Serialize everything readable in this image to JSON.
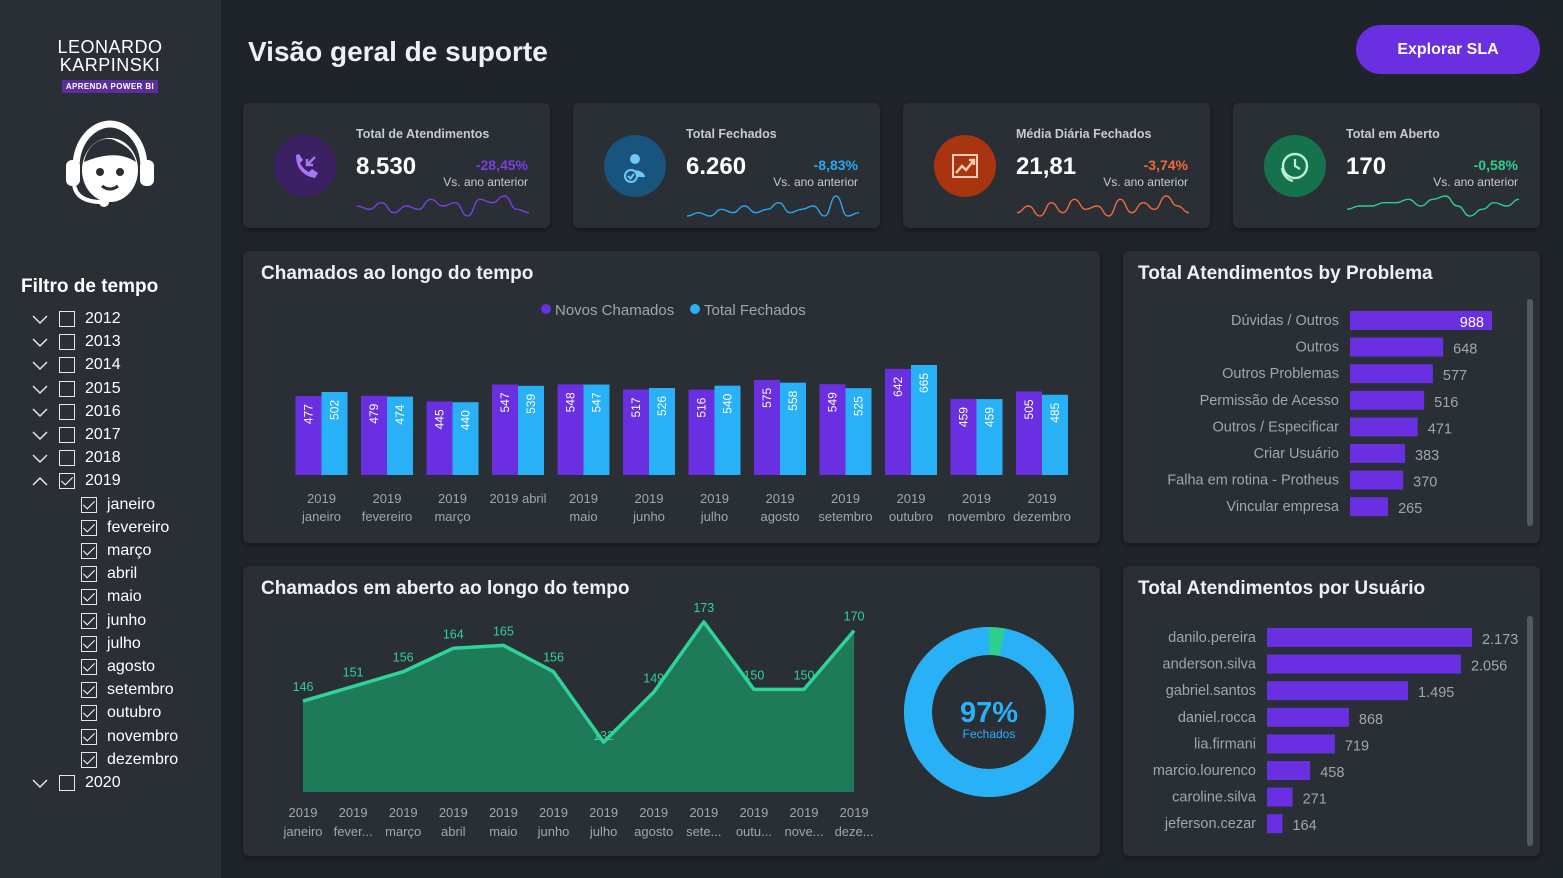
{
  "brand": {
    "line1": "LEONARDO",
    "line2": "KARPINSKI",
    "tagline": "APRENDA POWER BI"
  },
  "page_title": "Visão geral de suporte",
  "sla_button": "Explorar SLA",
  "time_filter": {
    "title": "Filtro de tempo",
    "years": [
      {
        "label": "2012",
        "checked": false,
        "expanded": false
      },
      {
        "label": "2013",
        "checked": false,
        "expanded": false
      },
      {
        "label": "2014",
        "checked": false,
        "expanded": false
      },
      {
        "label": "2015",
        "checked": false,
        "expanded": false
      },
      {
        "label": "2016",
        "checked": false,
        "expanded": false
      },
      {
        "label": "2017",
        "checked": false,
        "expanded": false
      },
      {
        "label": "2018",
        "checked": false,
        "expanded": false
      },
      {
        "label": "2019",
        "checked": true,
        "expanded": true
      }
    ],
    "months": [
      "janeiro",
      "fevereiro",
      "março",
      "abril",
      "maio",
      "junho",
      "julho",
      "agosto",
      "setembro",
      "outubro",
      "novembro",
      "dezembro"
    ],
    "last_year": {
      "label": "2020",
      "checked": false,
      "expanded": false
    }
  },
  "kpis": [
    {
      "label": "Total de Atendimentos",
      "value": "8.530",
      "delta": "-28,45%",
      "sub": "Vs. ano anterior",
      "icon": "phone-incoming-icon",
      "color": "#7b3fe4",
      "icon_bg": "#3b2164",
      "spark": [
        6,
        5,
        7,
        4,
        6,
        5,
        8,
        6,
        7,
        3,
        8,
        7,
        9,
        5,
        4
      ]
    },
    {
      "label": "Total Fechados",
      "value": "6.260",
      "delta": "-8,83%",
      "sub": "Vs. ano anterior",
      "icon": "support-check-icon",
      "color": "#29a8f0",
      "icon_bg": "#17557e",
      "spark": [
        3,
        4,
        3,
        5,
        4,
        6,
        4,
        5,
        7,
        4,
        5,
        6,
        3,
        9,
        3,
        4
      ]
    },
    {
      "label": "Média Diária Fechados",
      "value": "21,81",
      "delta": "-3,74%",
      "sub": "Vs. ano anterior",
      "icon": "trend-up-icon",
      "color": "#f26a3b",
      "icon_bg": "#a8350f",
      "spark": [
        4,
        6,
        3,
        7,
        4,
        8,
        5,
        6,
        3,
        8,
        4,
        7,
        5,
        9,
        6,
        4
      ]
    },
    {
      "label": "Total em Aberto",
      "value": "170",
      "delta": "-0,58%",
      "sub": "Vs. ano anterior",
      "icon": "clock-phone-icon",
      "color": "#2ecf8c",
      "icon_bg": "#16724c",
      "spark": [
        4,
        5,
        5,
        6,
        6,
        7,
        5,
        7,
        8,
        5,
        2,
        4,
        6,
        5,
        7
      ]
    }
  ],
  "bar_chart": {
    "title": "Chamados ao longo do tempo",
    "legend": [
      "Novos Chamados",
      "Total Fechados"
    ],
    "colors": [
      "#6a2fe0",
      "#29b1f7"
    ],
    "chart_data": {
      "type": "bar",
      "categories": [
        "2019 janeiro",
        "2019 fevereiro",
        "2019 março",
        "2019 abril",
        "2019 maio",
        "2019 junho",
        "2019 julho",
        "2019 agosto",
        "2019 setembro",
        "2019 outubro",
        "2019 novembro",
        "2019 dezembro"
      ],
      "series": [
        {
          "name": "Novos Chamados",
          "values": [
            477,
            479,
            445,
            547,
            548,
            517,
            516,
            575,
            549,
            642,
            459,
            505
          ]
        },
        {
          "name": "Total Fechados",
          "values": [
            502,
            474,
            440,
            539,
            547,
            526,
            540,
            558,
            525,
            665,
            459,
            485
          ]
        }
      ],
      "ylim": [
        0,
        665
      ]
    },
    "tick_lines": [
      [
        "2019",
        "janeiro"
      ],
      [
        "2019",
        "fevereiro"
      ],
      [
        "2019",
        "março"
      ],
      [
        "2019 abril",
        ""
      ],
      [
        "2019",
        "maio"
      ],
      [
        "2019",
        "junho"
      ],
      [
        "2019",
        "julho"
      ],
      [
        "2019",
        "agosto"
      ],
      [
        "2019",
        "setembro"
      ],
      [
        "2019",
        "outubro"
      ],
      [
        "2019",
        "novembro"
      ],
      [
        "2019",
        "dezembro"
      ]
    ]
  },
  "problem_chart": {
    "title": "Total Atendimentos by Problema",
    "color": "#6a2fe0",
    "chart_data": {
      "type": "bar",
      "categories": [
        "Dúvidas / Outros",
        "Outros",
        "Outros Problemas",
        "Permissão de Acesso",
        "Outros / Especificar",
        "Criar Usuário",
        "Falha em rotina - Protheus",
        "Vincular empresa"
      ],
      "values": [
        988,
        648,
        577,
        516,
        471,
        383,
        370,
        265
      ],
      "value_labels": [
        "988",
        "648",
        "577",
        "516",
        "471",
        "383",
        "370",
        "265"
      ]
    }
  },
  "area_chart": {
    "title": "Chamados em aberto ao longo do tempo",
    "line_color": "#2ed39a",
    "fill_color": "#1e7a58",
    "chart_data": {
      "type": "area",
      "categories": [
        "2019 janeiro",
        "2019 fevereiro",
        "2019 março",
        "2019 abril",
        "2019 maio",
        "2019 junho",
        "2019 julho",
        "2019 agosto",
        "2019 setembro",
        "2019 outubro",
        "2019 novembro",
        "2019 dezembro"
      ],
      "values": [
        146,
        151,
        156,
        164,
        165,
        156,
        132,
        149,
        173,
        150,
        150,
        170
      ]
    },
    "tick_lines": [
      [
        "2019",
        "janeiro"
      ],
      [
        "2019",
        "fever..."
      ],
      [
        "2019",
        "março"
      ],
      [
        "2019",
        "abril"
      ],
      [
        "2019",
        "maio"
      ],
      [
        "2019",
        "junho"
      ],
      [
        "2019",
        "julho"
      ],
      [
        "2019",
        "agosto"
      ],
      [
        "2019",
        "sete..."
      ],
      [
        "2019",
        "outu..."
      ],
      [
        "2019",
        "nove..."
      ],
      [
        "2019",
        "deze..."
      ]
    ]
  },
  "donut": {
    "value_text": "97%",
    "label": "Fechados",
    "fraction": 0.97,
    "colors": [
      "#29b1f7",
      "#2ecf8c"
    ]
  },
  "user_chart": {
    "title": "Total Atendimentos por Usuário",
    "color": "#6a2fe0",
    "chart_data": {
      "type": "bar",
      "categories": [
        "danilo.pereira",
        "anderson.silva",
        "gabriel.santos",
        "daniel.rocca",
        "lia.firmani",
        "marcio.lourenco",
        "caroline.silva",
        "jeferson.cezar"
      ],
      "values": [
        2173,
        2056,
        1495,
        868,
        719,
        458,
        271,
        164
      ],
      "value_labels": [
        "2.173",
        "2.056",
        "1.495",
        "868",
        "719",
        "458",
        "271",
        "164"
      ]
    }
  }
}
